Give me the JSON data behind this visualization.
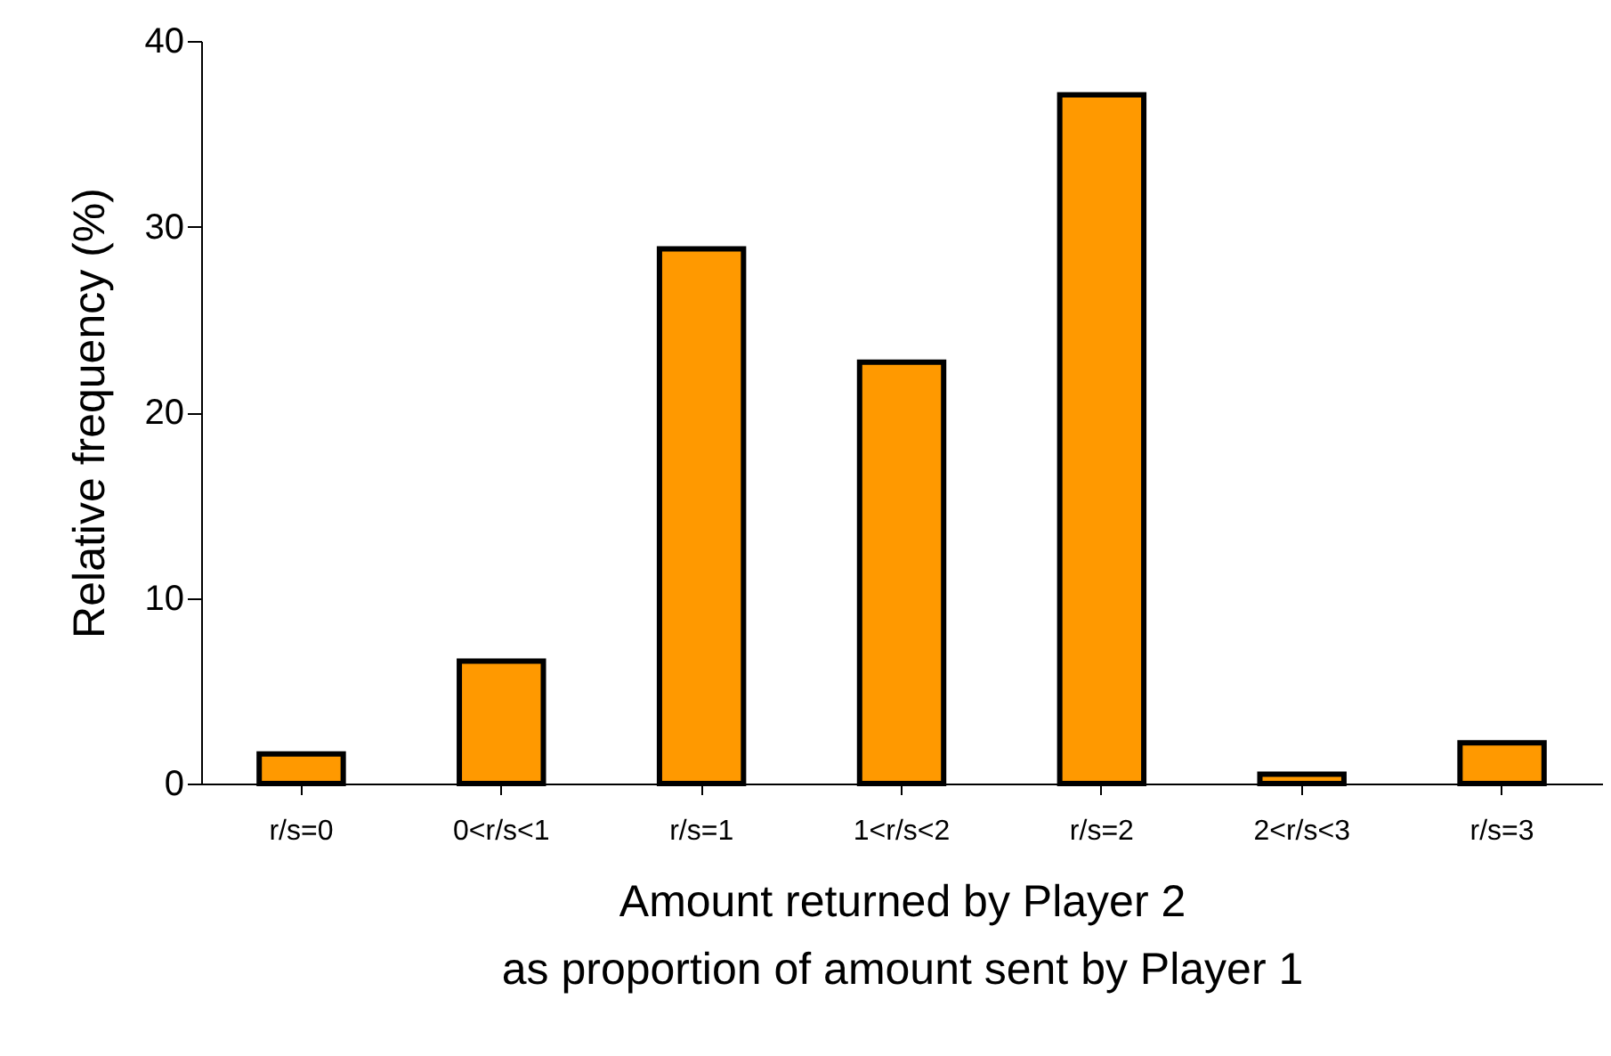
{
  "chart_data": {
    "type": "bar",
    "xlabel": "Amount returned by Player 2\nas proportion of amount sent by Player 1",
    "ylabel": "Relative frequency (%)",
    "categories": [
      "r/s=0",
      "0<r/s<1",
      "r/s=1",
      "1<r/s<2",
      "r/s=2",
      "2<r/s<3",
      "r/s=3"
    ],
    "values": [
      1.6,
      6.6,
      28.8,
      22.7,
      37.1,
      0.5,
      2.2
    ],
    "color": "#ff9900",
    "ylim": [
      0,
      40
    ],
    "yticks": [
      0,
      10,
      20,
      30,
      40
    ],
    "grid": false
  }
}
